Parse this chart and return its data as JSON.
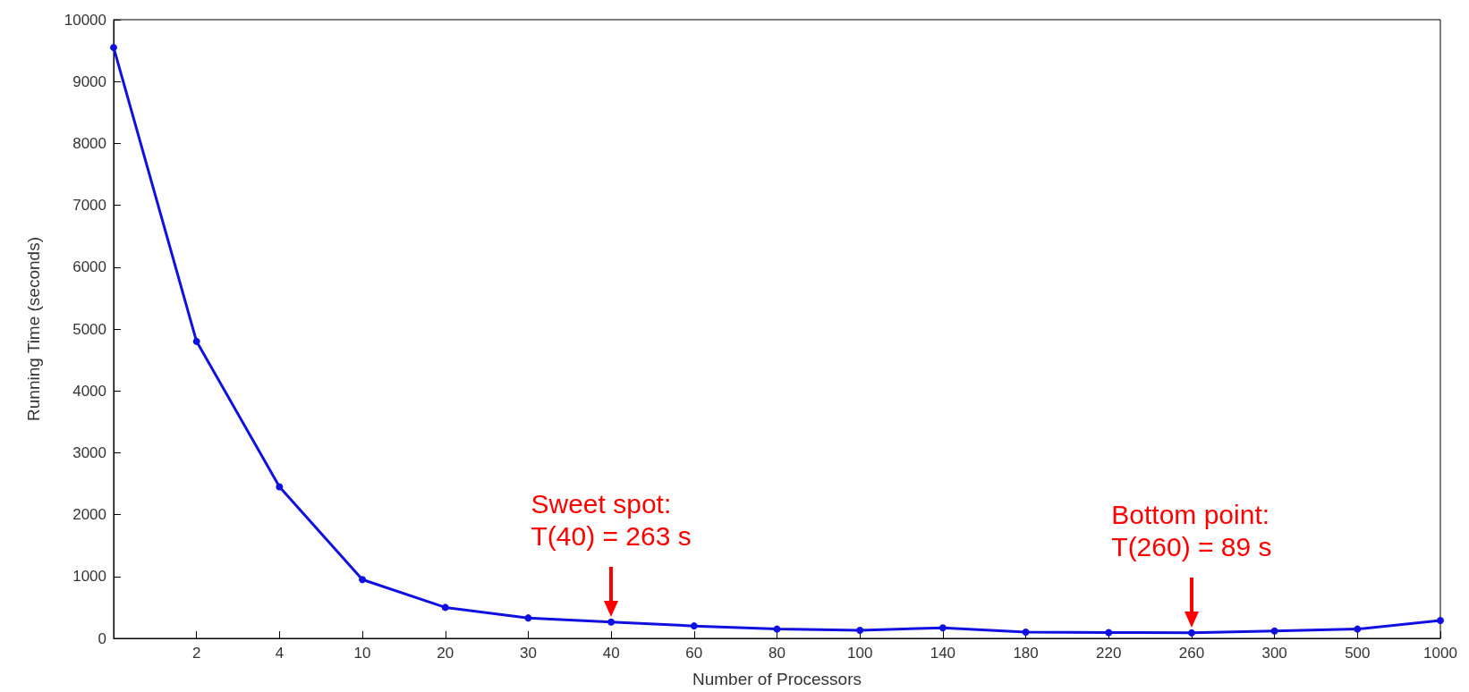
{
  "chart_data": {
    "type": "line",
    "xlabel": "Number of Processors",
    "ylabel": "Running Time (seconds)",
    "categories": [
      null,
      "2",
      "4",
      "10",
      "20",
      "30",
      "40",
      "60",
      "80",
      "100",
      "140",
      "180",
      "220",
      "260",
      "300",
      "500",
      "1000"
    ],
    "series": [
      {
        "color": "#1010e0",
        "values": [
          9550,
          4800,
          2450,
          950,
          500,
          330,
          263,
          200,
          150,
          130,
          170,
          100,
          95,
          89,
          120,
          150,
          290
        ]
      }
    ],
    "ylim": [
      0,
      10000
    ],
    "yticks": [
      0,
      1000,
      2000,
      3000,
      4000,
      5000,
      6000,
      7000,
      8000,
      9000,
      10000
    ],
    "marker": "circle",
    "line_style": "solid",
    "grid": false,
    "annotations": [
      {
        "text": "Sweet spot:\nT(40) = 263 s",
        "x": "40",
        "y": 263
      },
      {
        "text": "Bottom point:\nT(260) = 89 s",
        "x": "260",
        "y": 89
      }
    ]
  }
}
